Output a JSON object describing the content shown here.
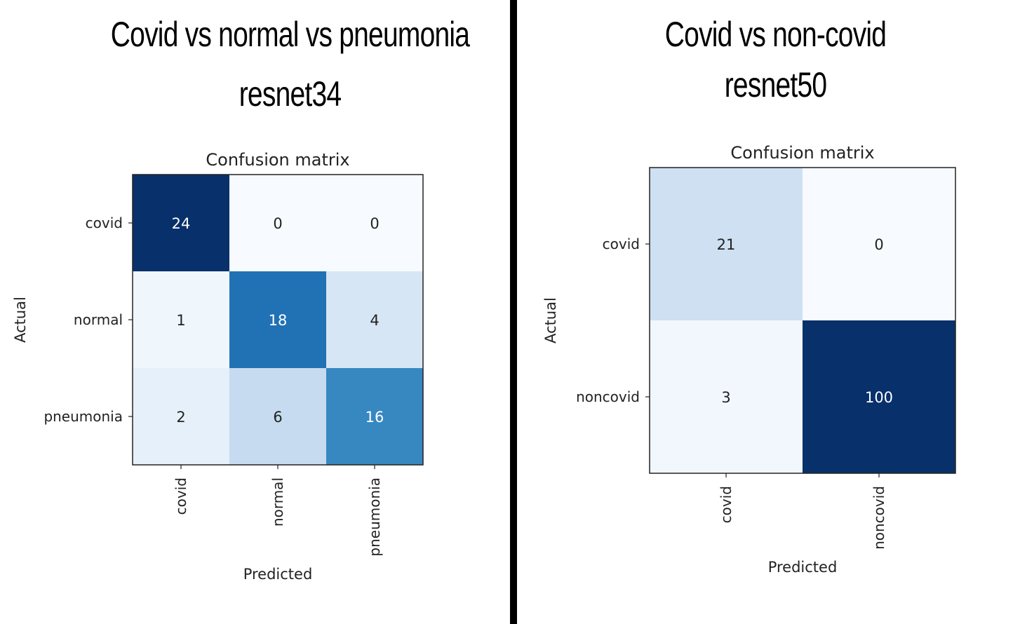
{
  "panels": [
    {
      "heading_line1": "Covid vs normal vs pneumonia",
      "heading_line2": "resnet34"
    },
    {
      "heading_line1": "Covid vs non-covid",
      "heading_line2": "resnet50"
    }
  ],
  "chart_data": [
    {
      "type": "heatmap",
      "title": "Confusion matrix",
      "xlabel": "Predicted",
      "ylabel": "Actual",
      "x_categories": [
        "covid",
        "normal",
        "pneumonia"
      ],
      "y_categories": [
        "covid",
        "normal",
        "pneumonia"
      ],
      "values": [
        [
          24,
          0,
          0
        ],
        [
          1,
          18,
          4
        ],
        [
          2,
          6,
          16
        ]
      ],
      "colormap": "Blues",
      "grid": false
    },
    {
      "type": "heatmap",
      "title": "Confusion matrix",
      "xlabel": "Predicted",
      "ylabel": "Actual",
      "x_categories": [
        "covid",
        "noncovid"
      ],
      "y_categories": [
        "covid",
        "noncovid"
      ],
      "values": [
        [
          21,
          0
        ],
        [
          3,
          100
        ]
      ],
      "colormap": "Blues",
      "grid": false
    }
  ]
}
